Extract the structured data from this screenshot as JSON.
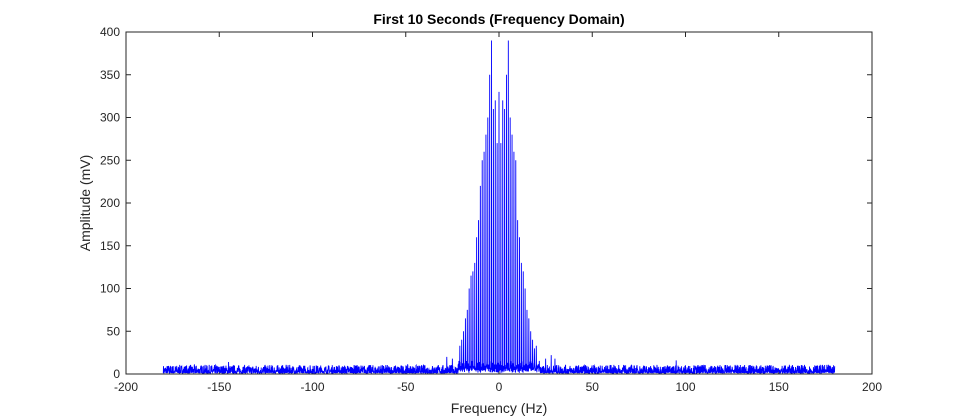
{
  "chart_data": {
    "type": "line",
    "title": "First 10 Seconds (Frequency Domain)",
    "xlabel": "Frequency (Hz)",
    "ylabel": "Amplitude (mV)",
    "xlim": [
      -200,
      200
    ],
    "ylim": [
      0,
      400
    ],
    "xticks": [
      -200,
      -150,
      -100,
      -50,
      0,
      50,
      100,
      150,
      200
    ],
    "yticks": [
      0,
      50,
      100,
      150,
      200,
      250,
      300,
      350,
      400
    ],
    "grid": false,
    "legend": "none",
    "line_color": "#0000ff",
    "frequency_range": [
      -180,
      180
    ],
    "noise_floor": {
      "min": 1,
      "max": 14
    },
    "peaks": [
      {
        "x": -28,
        "y": 20
      },
      {
        "x": -25,
        "y": 18
      },
      {
        "x": -21,
        "y": 33
      },
      {
        "x": -20,
        "y": 40
      },
      {
        "x": -19,
        "y": 50
      },
      {
        "x": -18,
        "y": 65
      },
      {
        "x": -17,
        "y": 75
      },
      {
        "x": -16,
        "y": 100
      },
      {
        "x": -15,
        "y": 115
      },
      {
        "x": -14,
        "y": 120
      },
      {
        "x": -13,
        "y": 130
      },
      {
        "x": -12,
        "y": 160
      },
      {
        "x": -11,
        "y": 180
      },
      {
        "x": -10,
        "y": 220
      },
      {
        "x": -9,
        "y": 250
      },
      {
        "x": -8,
        "y": 260
      },
      {
        "x": -7,
        "y": 280
      },
      {
        "x": -6,
        "y": 300
      },
      {
        "x": -5,
        "y": 350
      },
      {
        "x": -4,
        "y": 390
      },
      {
        "x": -3,
        "y": 310
      },
      {
        "x": -2,
        "y": 320
      },
      {
        "x": -1,
        "y": 270
      },
      {
        "x": 0,
        "y": 330
      },
      {
        "x": 1,
        "y": 270
      },
      {
        "x": 2,
        "y": 320
      },
      {
        "x": 3,
        "y": 310
      },
      {
        "x": 4,
        "y": 350
      },
      {
        "x": 5,
        "y": 390
      },
      {
        "x": 6,
        "y": 300
      },
      {
        "x": 7,
        "y": 280
      },
      {
        "x": 8,
        "y": 260
      },
      {
        "x": 9,
        "y": 250
      },
      {
        "x": 10,
        "y": 180
      },
      {
        "x": 11,
        "y": 160
      },
      {
        "x": 12,
        "y": 130
      },
      {
        "x": 13,
        "y": 120
      },
      {
        "x": 14,
        "y": 100
      },
      {
        "x": 15,
        "y": 75
      },
      {
        "x": 16,
        "y": 65
      },
      {
        "x": 17,
        "y": 50
      },
      {
        "x": 18,
        "y": 40
      },
      {
        "x": 19,
        "y": 30
      },
      {
        "x": 20,
        "y": 33
      },
      {
        "x": 25,
        "y": 18
      },
      {
        "x": 28,
        "y": 22
      },
      {
        "x": 30,
        "y": 18
      },
      {
        "x": 95,
        "y": 16
      },
      {
        "x": -145,
        "y": 14
      }
    ]
  }
}
